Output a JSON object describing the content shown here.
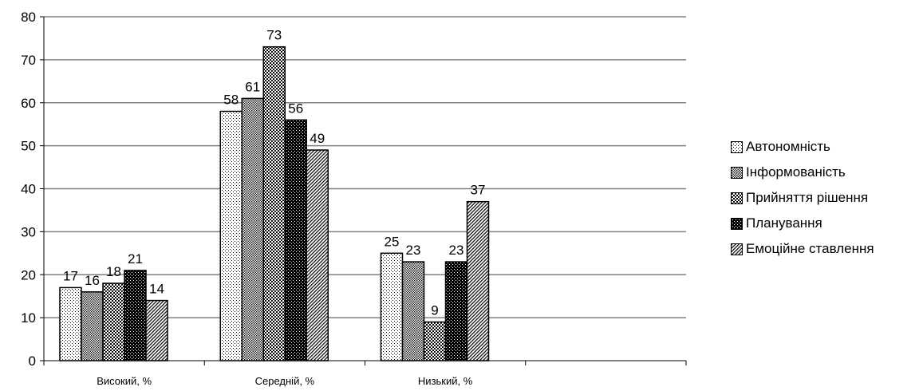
{
  "chart_data": {
    "type": "bar",
    "categories": [
      "Високий, %",
      "Середній, %",
      "Низький, %",
      ""
    ],
    "series": [
      {
        "name": "Автономність",
        "values": [
          17,
          58,
          25,
          null
        ],
        "pattern": "dots-sparse"
      },
      {
        "name": "Інформованість",
        "values": [
          16,
          61,
          23,
          null
        ],
        "pattern": "dots-medium"
      },
      {
        "name": "Прийняття рішення",
        "values": [
          18,
          73,
          9,
          null
        ],
        "pattern": "checker-dense"
      },
      {
        "name": "Планування",
        "values": [
          21,
          56,
          23,
          null
        ],
        "pattern": "checker-dark"
      },
      {
        "name": "Емоційне ставлення",
        "values": [
          14,
          49,
          37,
          null
        ],
        "pattern": "diagonal"
      }
    ],
    "ylim": [
      0,
      80
    ],
    "yticks": [
      0,
      10,
      20,
      30,
      40,
      50,
      60,
      70,
      80
    ],
    "grid": true,
    "legend": "right",
    "data_labels": true,
    "colors": {
      "grid": "#808080",
      "bar_fill": "#ffffff",
      "bar_stroke": "#000000"
    }
  }
}
